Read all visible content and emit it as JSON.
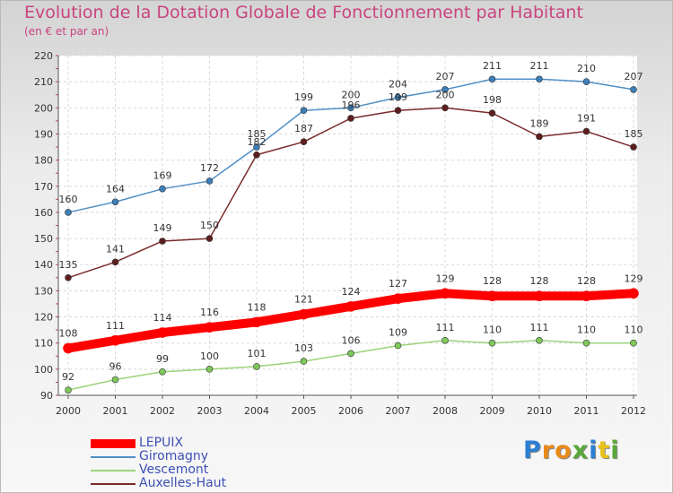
{
  "chart_data": {
    "type": "line",
    "title": "Evolution de la Dotation Globale de Fonctionnement par Habitant",
    "subtitle": "(en € et par an)",
    "x": [
      "2000",
      "2001",
      "2002",
      "2003",
      "2004",
      "2005",
      "2006",
      "2007",
      "2008",
      "2009",
      "2010",
      "2011",
      "2012"
    ],
    "ylim": [
      90,
      220
    ],
    "yticks": [
      90,
      100,
      110,
      120,
      130,
      140,
      150,
      160,
      170,
      180,
      190,
      200,
      210,
      220
    ],
    "grid": true,
    "legend_position": "bottom-left",
    "series": [
      {
        "name": "Giromagny",
        "color": "#4f8fc6",
        "marker": "#3d7fb8",
        "width": 1.5,
        "labelOffset": -11,
        "values": [
          160,
          164,
          169,
          172,
          185,
          199,
          200,
          204,
          207,
          211,
          211,
          210,
          207
        ]
      },
      {
        "name": "Auxelles-Haut",
        "color": "#7a2a2a",
        "marker": "#5e1e1e",
        "width": 1.5,
        "labelOffset": -11,
        "values": [
          135,
          141,
          149,
          150,
          182,
          187,
          196,
          199,
          200,
          198,
          189,
          191,
          185
        ]
      },
      {
        "name": "LEPUIX",
        "color": "#ff0000",
        "marker": "#ff0000",
        "width": 10,
        "labelOffset": -13,
        "values": [
          108,
          111,
          114,
          116,
          118,
          121,
          124,
          127,
          129,
          128,
          128,
          128,
          129
        ]
      },
      {
        "name": "Vescemont",
        "color": "#9ad47a",
        "marker": "#7ec85a",
        "width": 1.5,
        "labelOffset": -11,
        "values": [
          92,
          96,
          99,
          100,
          101,
          103,
          106,
          109,
          111,
          110,
          111,
          110,
          110
        ]
      }
    ]
  },
  "legend": [
    {
      "label": "LEPUIX",
      "color": "#ff0000",
      "thick": 10
    },
    {
      "label": "Giromagny",
      "color": "#4f8fc6",
      "thick": 2
    },
    {
      "label": "Vescemont",
      "color": "#9ad47a",
      "thick": 2
    },
    {
      "label": "Auxelles-Haut",
      "color": "#7a2a2a",
      "thick": 2
    }
  ],
  "logo": {
    "letters": [
      "P",
      "r",
      "o",
      "x",
      "i",
      "t",
      "i"
    ],
    "colors": [
      "#2b7fd3",
      "#e88a1a",
      "#e88a1a",
      "#5aa83a",
      "#2b7fd3",
      "#e8c21a",
      "#5aa83a"
    ]
  }
}
